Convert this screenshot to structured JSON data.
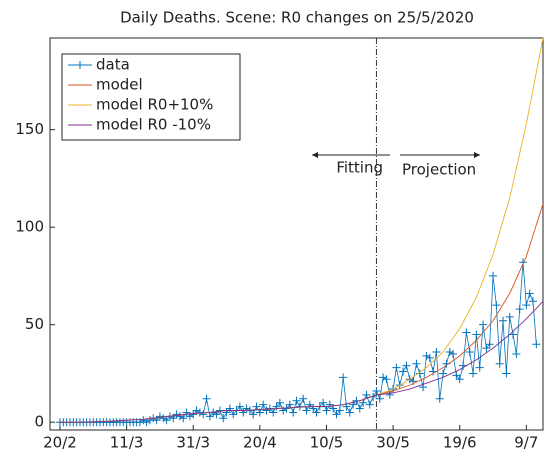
{
  "chart_data": {
    "type": "line",
    "title": "Daily Deaths. Scene: R0 changes on 25/5/2020",
    "xlim": [
      -3,
      145
    ],
    "ylim": [
      -4,
      197
    ],
    "xticks": [
      {
        "value": 0,
        "label": "20/2"
      },
      {
        "value": 20,
        "label": "11/3"
      },
      {
        "value": 40,
        "label": "31/3"
      },
      {
        "value": 60,
        "label": "20/4"
      },
      {
        "value": 80,
        "label": "10/5"
      },
      {
        "value": 100,
        "label": "30/5"
      },
      {
        "value": 120,
        "label": "19/6"
      },
      {
        "value": 140,
        "label": "9/7"
      }
    ],
    "yticks": [
      0,
      50,
      100,
      150
    ],
    "vline": 95,
    "annotations": [
      "Fitting",
      "Projection"
    ],
    "legend": "upper left",
    "series": [
      {
        "name": "data",
        "color": "#0072bd",
        "marker": "+",
        "x": [
          0,
          1,
          2,
          3,
          4,
          5,
          6,
          7,
          8,
          9,
          10,
          11,
          12,
          13,
          14,
          15,
          16,
          17,
          18,
          19,
          20,
          21,
          22,
          23,
          24,
          25,
          26,
          27,
          28,
          29,
          30,
          31,
          32,
          33,
          34,
          35,
          36,
          37,
          38,
          39,
          40,
          41,
          42,
          43,
          44,
          45,
          46,
          47,
          48,
          49,
          50,
          51,
          52,
          53,
          54,
          55,
          56,
          57,
          58,
          59,
          60,
          61,
          62,
          63,
          64,
          65,
          66,
          67,
          68,
          69,
          70,
          71,
          72,
          73,
          74,
          75,
          76,
          77,
          78,
          79,
          80,
          81,
          82,
          83,
          84,
          85,
          86,
          87,
          88,
          89,
          90,
          91,
          92,
          93,
          94,
          95,
          96,
          97,
          98,
          99,
          100,
          101,
          102,
          103,
          104,
          105,
          106,
          107,
          108,
          109,
          110,
          111,
          112,
          113,
          114,
          115,
          116,
          117,
          118,
          119,
          120,
          121,
          122,
          123,
          124,
          125,
          126,
          127,
          128,
          129,
          130,
          131,
          132,
          133,
          134,
          135,
          136,
          137,
          138,
          139,
          140,
          141,
          142,
          143
        ],
        "values": [
          0,
          0,
          0,
          0,
          0,
          0,
          0,
          0,
          0,
          0,
          0,
          0,
          0,
          0,
          0,
          0,
          0,
          0,
          0,
          0,
          0,
          0,
          0,
          0,
          0,
          1,
          0,
          1,
          2,
          1,
          3,
          2,
          1,
          3,
          2,
          4,
          3,
          2,
          5,
          3,
          4,
          6,
          5,
          4,
          12,
          3,
          5,
          4,
          6,
          2,
          5,
          7,
          4,
          6,
          8,
          5,
          7,
          6,
          4,
          8,
          5,
          9,
          6,
          7,
          5,
          8,
          10,
          6,
          7,
          9,
          5,
          11,
          8,
          12,
          6,
          9,
          7,
          5,
          8,
          10,
          6,
          9,
          7,
          4,
          6,
          23,
          8,
          5,
          9,
          11,
          7,
          10,
          14,
          9,
          13,
          16,
          12,
          23,
          22,
          14,
          17,
          28,
          19,
          26,
          29,
          22,
          21,
          30,
          25,
          18,
          34,
          33,
          26,
          36,
          12,
          25,
          30,
          36,
          35,
          24,
          22,
          29,
          46,
          36,
          25,
          45,
          28,
          50,
          38,
          40,
          75,
          60,
          30,
          52,
          25,
          54,
          45,
          35,
          58,
          82,
          60,
          66,
          62,
          40
        ]
      },
      {
        "name": "model",
        "color": "#d95319",
        "x": [
          0,
          5,
          10,
          15,
          20,
          25,
          30,
          35,
          40,
          45,
          50,
          55,
          60,
          65,
          70,
          75,
          80,
          85,
          90,
          95,
          100,
          105,
          110,
          115,
          120,
          125,
          130,
          135,
          140,
          145
        ],
        "values": [
          0,
          0,
          0.2,
          0.5,
          1,
          1.5,
          2.5,
          3.5,
          4.5,
          5,
          6,
          6,
          6.5,
          7,
          7.5,
          8,
          8,
          9,
          11,
          14,
          16,
          19,
          23,
          28,
          34,
          42,
          52,
          66,
          85,
          112
        ]
      },
      {
        "name": "model R0+10%",
        "color": "#edb120",
        "x": [
          0,
          5,
          10,
          15,
          20,
          25,
          30,
          35,
          40,
          45,
          50,
          55,
          60,
          65,
          70,
          75,
          80,
          85,
          90,
          95,
          100,
          105,
          110,
          115,
          120,
          125,
          130,
          135,
          140,
          145
        ],
        "values": [
          0,
          0,
          0.2,
          0.5,
          1,
          1.5,
          2.5,
          3.5,
          4.5,
          5,
          6,
          6,
          6.5,
          7,
          7.5,
          8,
          8,
          9,
          11,
          14,
          17,
          22,
          28,
          36,
          48,
          64,
          86,
          115,
          153,
          197
        ]
      },
      {
        "name": "model R0 -10%",
        "color": "#7e2f8e",
        "x": [
          0,
          5,
          10,
          15,
          20,
          25,
          30,
          35,
          40,
          45,
          50,
          55,
          60,
          65,
          70,
          75,
          80,
          85,
          90,
          95,
          100,
          105,
          110,
          115,
          120,
          125,
          130,
          135,
          140,
          145
        ],
        "values": [
          0,
          0,
          0.2,
          0.5,
          1,
          1.5,
          2.5,
          3.5,
          4.5,
          5,
          6,
          6,
          6.5,
          7,
          7.5,
          8,
          8,
          9,
          11,
          14,
          15,
          17,
          20,
          23,
          27,
          32,
          38,
          45,
          53,
          62
        ]
      }
    ]
  }
}
